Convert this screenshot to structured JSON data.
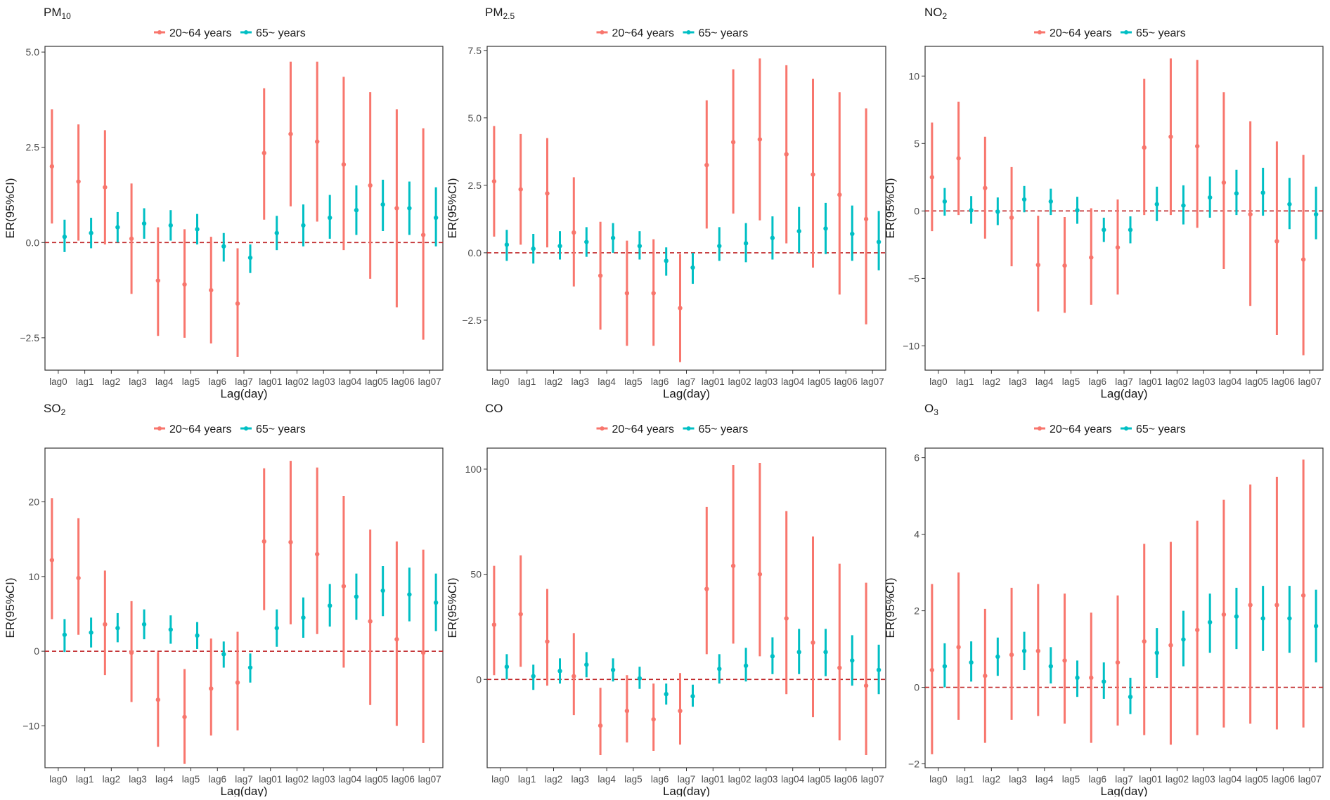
{
  "colors": {
    "group1": "#F8766D",
    "group2": "#00BFC4",
    "refline": "#C0282A",
    "frame": "#333333"
  },
  "legend_labels": [
    "20~64 years",
    "65~ years"
  ],
  "xlabel": "Lag(day)",
  "ylabel": "ER(95%CI)",
  "categories": [
    "lag0",
    "lag1",
    "lag2",
    "lag3",
    "lag4",
    "lag5",
    "lag6",
    "lag7",
    "lag01",
    "lag02",
    "lag03",
    "lag04",
    "lag05",
    "lag06",
    "lag07"
  ],
  "chart_data": [
    {
      "type": "errorbar",
      "title": "PM",
      "title_sub": "10",
      "ylim": [
        -3.35,
        5.15
      ],
      "yticks": [
        -2.5,
        0,
        2.5,
        5
      ],
      "ytick_labels": [
        "−2.5",
        "0.0",
        "2.5",
        "5.0"
      ],
      "legend_position": "top-center",
      "series": [
        {
          "name": "20~64 years",
          "est": [
            2.0,
            1.6,
            1.45,
            0.1,
            -1.0,
            -1.1,
            -1.25,
            -1.6,
            2.35,
            2.85,
            2.65,
            2.05,
            1.5,
            0.9,
            0.2
          ],
          "lower": [
            0.5,
            0.05,
            -0.05,
            -1.35,
            -2.45,
            -2.5,
            -2.65,
            -3.0,
            0.6,
            0.95,
            0.55,
            -0.2,
            -0.95,
            -1.7,
            -2.55
          ],
          "upper": [
            3.5,
            3.1,
            2.95,
            1.55,
            0.4,
            0.35,
            0.15,
            -0.15,
            4.05,
            4.75,
            4.75,
            4.35,
            3.95,
            3.5,
            3.0
          ]
        },
        {
          "name": "65~ years",
          "est": [
            0.15,
            0.25,
            0.4,
            0.5,
            0.45,
            0.35,
            -0.1,
            -0.4,
            0.25,
            0.45,
            0.65,
            0.85,
            1.0,
            0.9,
            0.65
          ],
          "lower": [
            -0.25,
            -0.15,
            0.0,
            0.1,
            0.05,
            -0.05,
            -0.5,
            -0.8,
            -0.2,
            -0.1,
            0.1,
            0.2,
            0.3,
            0.2,
            -0.1
          ],
          "upper": [
            0.6,
            0.65,
            0.8,
            0.9,
            0.85,
            0.75,
            0.25,
            -0.05,
            0.7,
            1.0,
            1.25,
            1.5,
            1.65,
            1.6,
            1.45
          ]
        }
      ]
    },
    {
      "type": "errorbar",
      "title": "PM",
      "title_sub": "2.5",
      "ylim": [
        -4.35,
        7.65
      ],
      "yticks": [
        -2.5,
        0,
        2.5,
        5,
        7.5
      ],
      "ytick_labels": [
        "−2.5",
        "0.0",
        "2.5",
        "5.0",
        "7.5"
      ],
      "legend_position": "top-center",
      "series": [
        {
          "name": "20~64 years",
          "est": [
            2.65,
            2.35,
            2.2,
            0.75,
            -0.85,
            -1.5,
            -1.5,
            -2.05,
            3.25,
            4.1,
            4.2,
            3.65,
            2.9,
            2.15,
            1.25
          ],
          "lower": [
            0.6,
            0.3,
            0.2,
            -1.25,
            -2.85,
            -3.45,
            -3.45,
            -4.05,
            0.9,
            1.45,
            1.2,
            0.35,
            -0.55,
            -1.55,
            -2.65
          ],
          "upper": [
            4.7,
            4.4,
            4.25,
            2.8,
            1.15,
            0.45,
            0.5,
            -0.05,
            5.65,
            6.8,
            7.2,
            6.95,
            6.45,
            5.95,
            5.35
          ]
        },
        {
          "name": "65~ years",
          "est": [
            0.3,
            0.15,
            0.25,
            0.4,
            0.55,
            0.25,
            -0.3,
            -0.55,
            0.25,
            0.35,
            0.55,
            0.8,
            0.9,
            0.7,
            0.4
          ],
          "lower": [
            -0.3,
            -0.4,
            -0.25,
            -0.15,
            0.0,
            -0.25,
            -0.85,
            -1.15,
            -0.3,
            -0.35,
            -0.25,
            0.0,
            -0.05,
            -0.3,
            -0.65
          ],
          "upper": [
            0.85,
            0.7,
            0.8,
            0.95,
            1.1,
            0.8,
            0.2,
            0.0,
            0.95,
            1.1,
            1.35,
            1.7,
            1.85,
            1.75,
            1.55
          ]
        }
      ]
    },
    {
      "type": "errorbar",
      "title": "NO",
      "title_sub": "2",
      "ylim": [
        -11.8,
        12.2
      ],
      "yticks": [
        -10,
        -5,
        0,
        5,
        10
      ],
      "ytick_labels": [
        "−10",
        "−5",
        "0",
        "5",
        "10"
      ],
      "legend_position": "top-center",
      "series": [
        {
          "name": "20~64 years",
          "est": [
            2.5,
            3.9,
            1.7,
            -0.5,
            -4.0,
            -4.05,
            -3.45,
            -2.7,
            4.7,
            5.5,
            4.8,
            2.1,
            -0.25,
            -2.25,
            -3.6
          ],
          "lower": [
            -1.5,
            -0.3,
            -2.05,
            -4.1,
            -7.45,
            -7.55,
            -6.95,
            -6.2,
            -0.3,
            -0.3,
            -1.25,
            -4.3,
            -7.05,
            -9.2,
            -10.7
          ],
          "upper": [
            6.55,
            8.1,
            5.5,
            3.25,
            -0.35,
            -0.45,
            0.2,
            0.85,
            9.8,
            11.3,
            11.2,
            8.8,
            6.65,
            5.15,
            4.15
          ]
        },
        {
          "name": "65~ years",
          "est": [
            0.7,
            0.05,
            -0.05,
            0.85,
            0.7,
            0.05,
            -1.4,
            -1.4,
            0.5,
            0.4,
            1.0,
            1.3,
            1.35,
            0.5,
            -0.25
          ],
          "lower": [
            -0.35,
            -0.95,
            -1.05,
            -0.1,
            -0.3,
            -0.95,
            -2.3,
            -2.4,
            -0.75,
            -1.0,
            -0.5,
            -0.3,
            -0.35,
            -1.35,
            -2.1
          ],
          "upper": [
            1.7,
            1.1,
            1.0,
            1.85,
            1.65,
            1.05,
            -0.5,
            -0.4,
            1.8,
            1.9,
            2.55,
            3.05,
            3.2,
            2.45,
            1.8
          ]
        }
      ]
    },
    {
      "type": "errorbar",
      "title": "SO",
      "title_sub": "2",
      "ylim": [
        -15.6,
        27.2
      ],
      "yticks": [
        -10,
        0,
        10,
        20
      ],
      "ytick_labels": [
        "−10",
        "0",
        "10",
        "20"
      ],
      "legend_position": "top-center",
      "series": [
        {
          "name": "20~64 years",
          "est": [
            12.2,
            9.8,
            3.6,
            -0.2,
            -6.5,
            -8.8,
            -5.0,
            -4.2,
            14.7,
            14.6,
            13.0,
            8.7,
            4.0,
            1.6,
            -0.2
          ],
          "lower": [
            4.3,
            2.2,
            -3.2,
            -6.8,
            -12.8,
            -15.1,
            -11.3,
            -10.6,
            5.5,
            3.6,
            2.3,
            -2.2,
            -7.2,
            -10.0,
            -12.3
          ],
          "upper": [
            20.5,
            17.8,
            10.8,
            6.7,
            -0.1,
            -2.4,
            1.7,
            2.6,
            24.5,
            25.5,
            24.6,
            20.8,
            16.3,
            14.7,
            13.6
          ]
        },
        {
          "name": "65~ years",
          "est": [
            2.2,
            2.5,
            3.1,
            3.6,
            2.9,
            2.1,
            -0.4,
            -2.2,
            3.1,
            4.5,
            6.1,
            7.3,
            8.1,
            7.6,
            6.5
          ],
          "lower": [
            -0.1,
            0.5,
            1.2,
            1.6,
            1.0,
            0.3,
            -2.2,
            -4.2,
            0.6,
            1.8,
            3.3,
            4.2,
            4.7,
            4.0,
            2.7
          ],
          "upper": [
            4.3,
            4.5,
            5.1,
            5.6,
            4.8,
            3.9,
            1.3,
            -0.3,
            5.6,
            7.2,
            9.0,
            10.4,
            11.4,
            11.2,
            10.4
          ]
        }
      ]
    },
    {
      "type": "errorbar",
      "title": "CO",
      "title_sub": "",
      "ylim": [
        -42,
        110
      ],
      "yticks": [
        0,
        50,
        100
      ],
      "ytick_labels": [
        "0",
        "50",
        "100"
      ],
      "legend_position": "top-center",
      "series": [
        {
          "name": "20~64 years",
          "est": [
            26,
            31,
            18,
            1.5,
            -22,
            -15,
            -19,
            -15,
            43,
            54,
            50,
            29,
            17.5,
            5.5,
            -3
          ],
          "lower": [
            2,
            6,
            -3,
            -17,
            -36,
            -30,
            -34,
            -31,
            12,
            17,
            11,
            -7,
            -18,
            -29,
            -36
          ],
          "upper": [
            54,
            59,
            43,
            22,
            -4,
            2,
            -2,
            3,
            82,
            102,
            103,
            80,
            68,
            55,
            46
          ]
        },
        {
          "name": "65~ years",
          "est": [
            6,
            1.5,
            4,
            7,
            4.5,
            0.5,
            -7,
            -8,
            5,
            6.5,
            11,
            13,
            13,
            9,
            4.5
          ],
          "lower": [
            0,
            -5,
            -2,
            1,
            -1,
            -4.5,
            -12,
            -13,
            -2,
            -1,
            2.5,
            2.5,
            1.5,
            -3,
            -7
          ],
          "upper": [
            12,
            7,
            10,
            13,
            10,
            6,
            -2,
            -2.5,
            12,
            15,
            20,
            24,
            24,
            21,
            16.5
          ]
        }
      ]
    },
    {
      "type": "errorbar",
      "title": "O",
      "title_sub": "3",
      "ylim": [
        -2.1,
        6.25
      ],
      "yticks": [
        -2,
        0,
        2,
        4,
        6
      ],
      "ytick_labels": [
        "−2",
        "0",
        "2",
        "4",
        "6"
      ],
      "legend_position": "top-center",
      "series": [
        {
          "name": "20~64 years",
          "est": [
            0.45,
            1.05,
            0.3,
            0.85,
            0.95,
            0.7,
            0.25,
            0.65,
            1.2,
            1.1,
            1.5,
            1.9,
            2.15,
            2.15,
            2.4
          ],
          "lower": [
            -1.75,
            -0.85,
            -1.45,
            -0.85,
            -0.75,
            -0.95,
            -1.45,
            -1.0,
            -1.25,
            -1.5,
            -1.25,
            -1.05,
            -0.95,
            -1.1,
            -1.05
          ],
          "upper": [
            2.7,
            3.0,
            2.05,
            2.6,
            2.7,
            2.45,
            1.95,
            2.4,
            3.75,
            3.8,
            4.35,
            4.9,
            5.3,
            5.5,
            5.95
          ]
        },
        {
          "name": "65~ years",
          "est": [
            0.55,
            0.65,
            0.8,
            0.95,
            0.55,
            0.25,
            0.15,
            -0.25,
            0.9,
            1.25,
            1.7,
            1.85,
            1.8,
            1.8,
            1.6
          ],
          "lower": [
            0.0,
            0.15,
            0.3,
            0.45,
            0.1,
            -0.25,
            -0.3,
            -0.7,
            0.25,
            0.55,
            0.9,
            1.0,
            0.95,
            0.9,
            0.65
          ],
          "upper": [
            1.15,
            1.2,
            1.3,
            1.45,
            1.05,
            0.7,
            0.65,
            0.25,
            1.55,
            2.0,
            2.45,
            2.6,
            2.65,
            2.65,
            2.55
          ]
        }
      ]
    }
  ]
}
